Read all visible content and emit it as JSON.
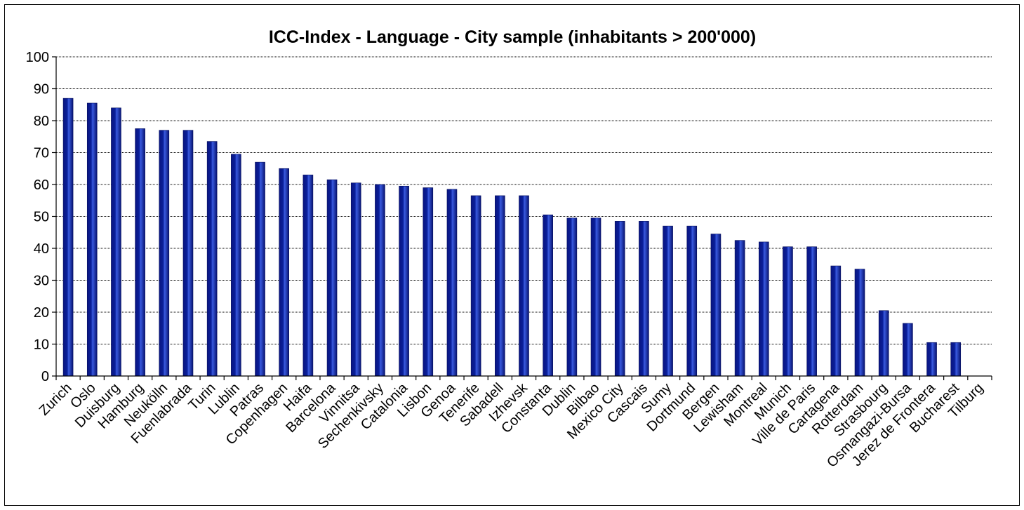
{
  "chart_data": {
    "type": "bar",
    "title": "ICC-Index - Language - City sample (inhabitants > 200'000)",
    "xlabel": "",
    "ylabel": "",
    "ylim": [
      0,
      100
    ],
    "yticks": [
      "0",
      "10",
      "20",
      "30",
      "40",
      "50",
      "60",
      "70",
      "80",
      "90",
      "100"
    ],
    "grid": true,
    "bar_color": "#0a1f9a",
    "categories": [
      "Zurich",
      "Oslo",
      "Duisburg",
      "Hamburg",
      "Neukölln",
      "Fuenlabrada",
      "Turin",
      "Lublin",
      "Patras",
      "Copenhagen",
      "Haifa",
      "Barcelona",
      "Vinnitsa",
      "Sechenkivsky",
      "Catalonia",
      "Lisbon",
      "Genoa",
      "Tenerife",
      "Sabadell",
      "Izhevsk",
      "Constanta",
      "Dublin",
      "Bilbao",
      "Mexico City",
      "Cascais",
      "Sumy",
      "Dortmund",
      "Bergen",
      "Lewisham",
      "Montreal",
      "Munich",
      "Ville de Paris",
      "Cartagena",
      "Rotterdam",
      "Strasbourg",
      "Osmangazi-Bursa",
      "Jerez de Frontera",
      "Bucharest",
      "Tilburg"
    ],
    "values": [
      87,
      85.5,
      84,
      77.5,
      77,
      77,
      73.5,
      69.5,
      67,
      65,
      63,
      61.5,
      60.5,
      60,
      59.5,
      59,
      58.5,
      56.5,
      56.5,
      56.5,
      50.5,
      49.5,
      49.5,
      48.5,
      48.5,
      47,
      47,
      44.5,
      42.5,
      42,
      40.5,
      40.5,
      34.5,
      33.5,
      20.5,
      16.5,
      10.5,
      10.5,
      0
    ]
  }
}
